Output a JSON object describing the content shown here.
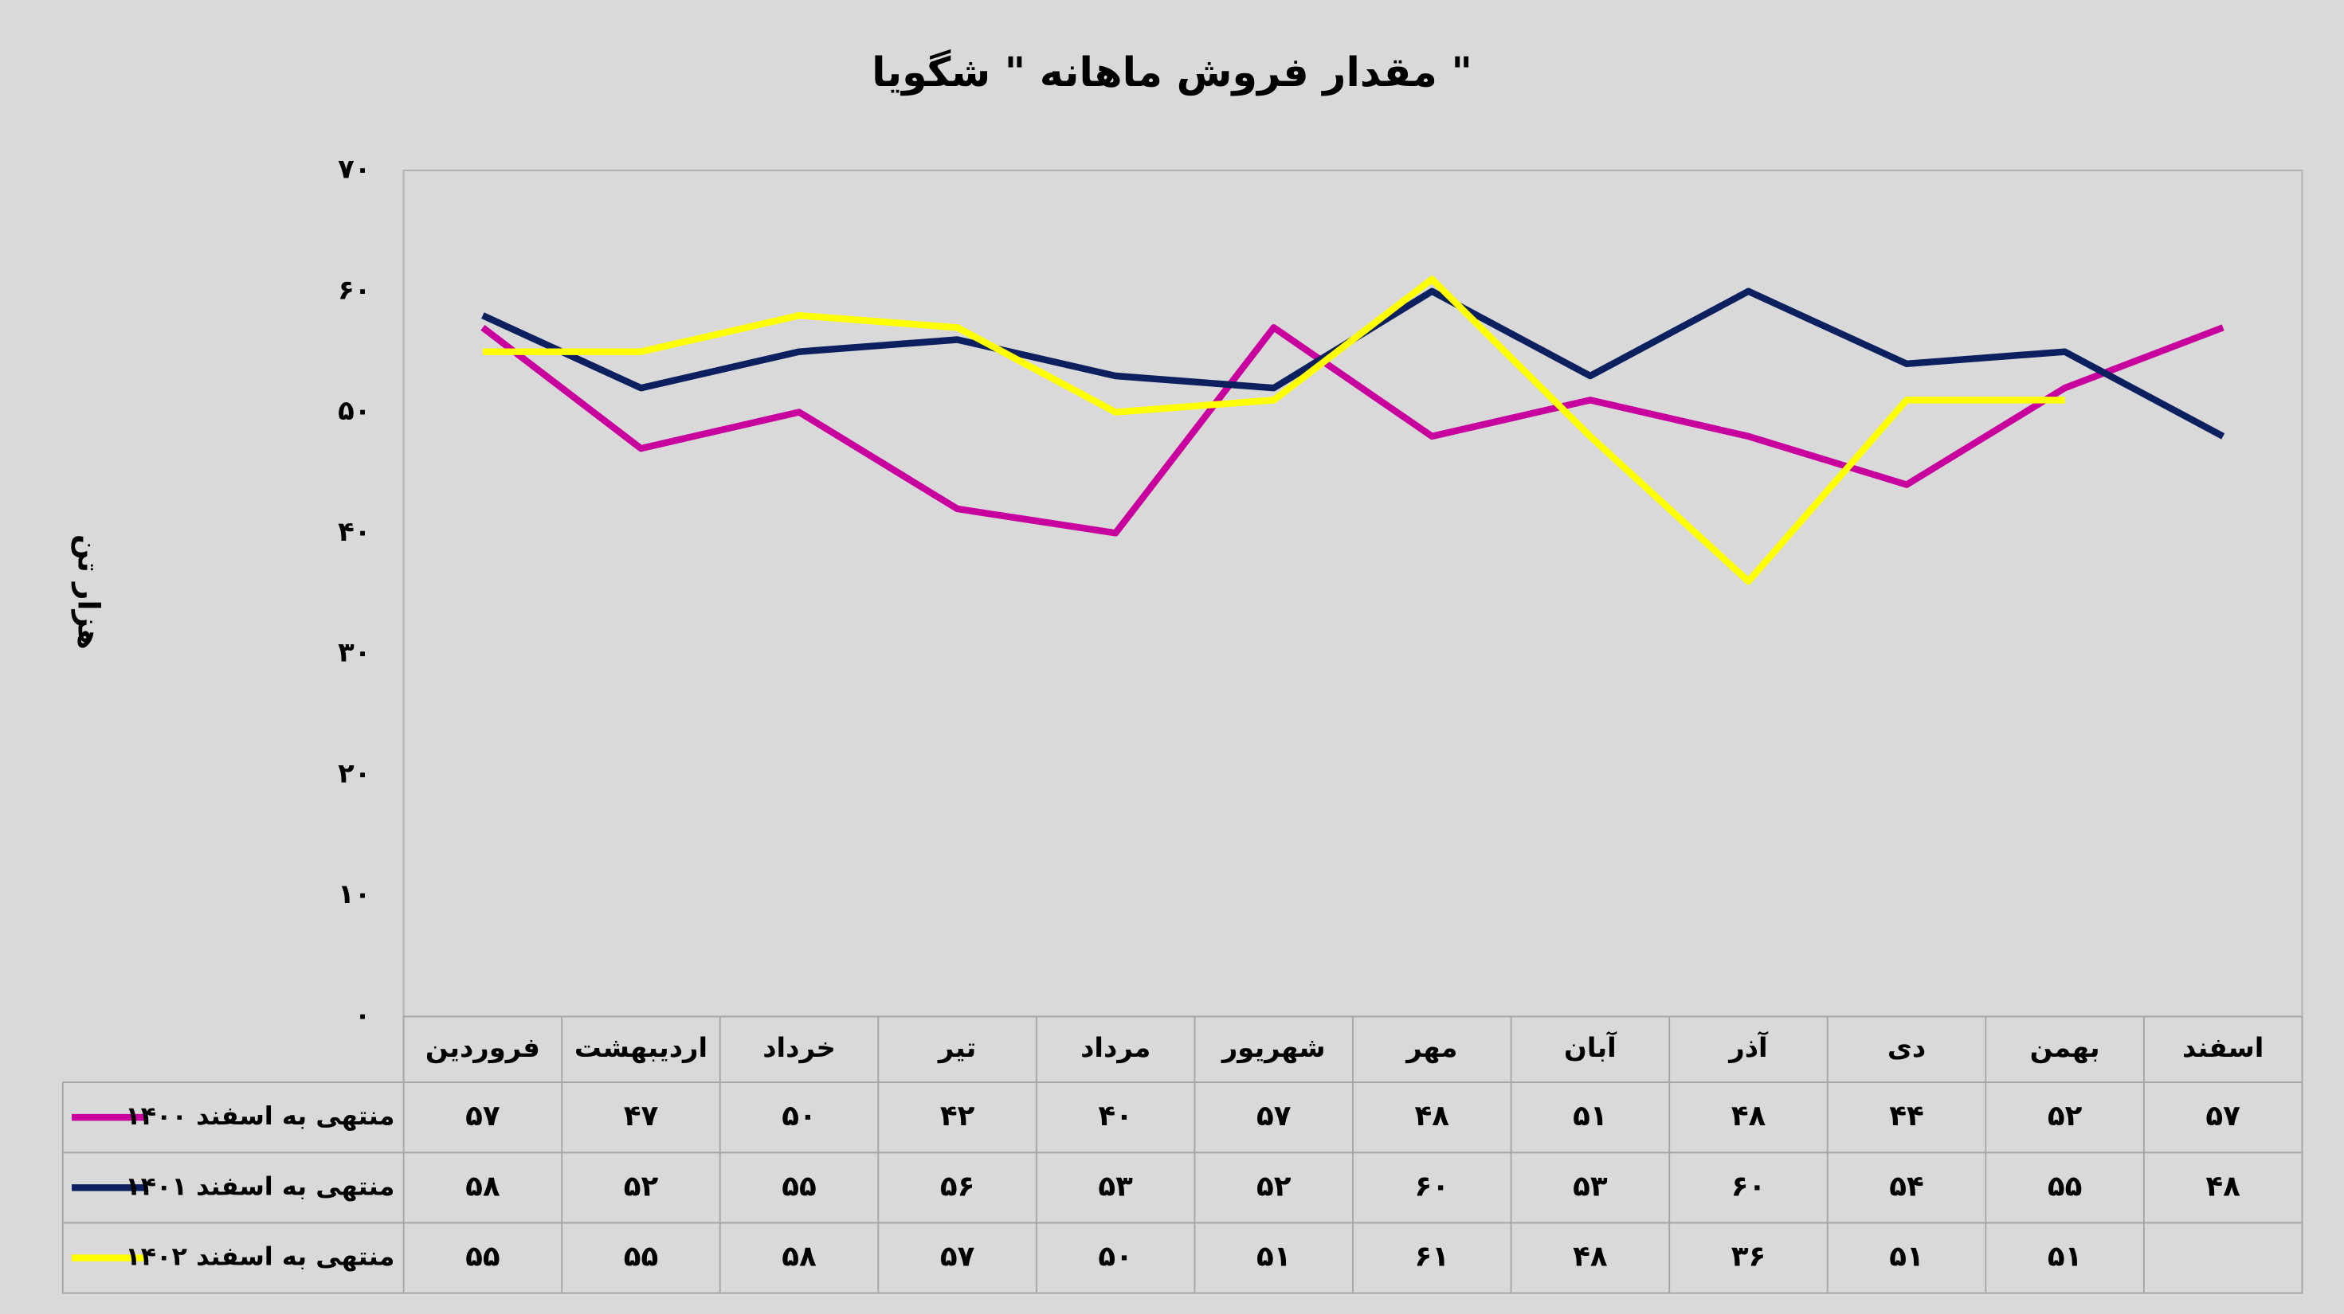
{
  "chart_data": {
    "type": "line",
    "title": "مقدار فروش ماهانه \" شگویا \"",
    "y_label": "هزار تن",
    "categories": [
      "فروردین",
      "اردیبهشت",
      "خرداد",
      "تیر",
      "مرداد",
      "شهریور",
      "مهر",
      "آبان",
      "آذر",
      "دی",
      "بهمن",
      "اسفند"
    ],
    "series": [
      {
        "name": "منتهی به اسفند ۱۴۰۰",
        "color": "#c8009e",
        "values": [
          57,
          47,
          50,
          42,
          40,
          57,
          48,
          51,
          48,
          44,
          52,
          57
        ],
        "value_labels": [
          "۵۷",
          "۴۷",
          "۵۰",
          "۴۲",
          "۴۰",
          "۵۷",
          "۴۸",
          "۵۱",
          "۴۸",
          "۴۴",
          "۵۲",
          "۵۷"
        ]
      },
      {
        "name": "منتهی به اسفند ۱۴۰۱",
        "color": "#0c1f5e",
        "values": [
          58,
          52,
          55,
          56,
          53,
          52,
          60,
          53,
          60,
          54,
          55,
          48
        ],
        "value_labels": [
          "۵۸",
          "۵۲",
          "۵۵",
          "۵۶",
          "۵۳",
          "۵۲",
          "۶۰",
          "۵۳",
          "۶۰",
          "۵۴",
          "۵۵",
          "۴۸"
        ]
      },
      {
        "name": "منتهی به اسفند ۱۴۰۲",
        "color": "#ffff00",
        "values": [
          55,
          55,
          58,
          57,
          50,
          51,
          61,
          48,
          36,
          51,
          51,
          null
        ],
        "value_labels": [
          "۵۵",
          "۵۵",
          "۵۸",
          "۵۷",
          "۵۰",
          "۵۱",
          "۶۱",
          "۴۸",
          "۳۶",
          "۵۱",
          "۵۱",
          null
        ]
      }
    ],
    "ylim": [
      0,
      70
    ],
    "yticks": [
      {
        "value": 0,
        "label": "۰"
      },
      {
        "value": 10,
        "label": "۱۰"
      },
      {
        "value": 20,
        "label": "۲۰"
      },
      {
        "value": 30,
        "label": "۳۰"
      },
      {
        "value": 40,
        "label": "۴۰"
      },
      {
        "value": 50,
        "label": "۵۰"
      },
      {
        "value": 60,
        "label": "۶۰"
      },
      {
        "value": 70,
        "label": "۷۰"
      }
    ],
    "grid": false
  }
}
